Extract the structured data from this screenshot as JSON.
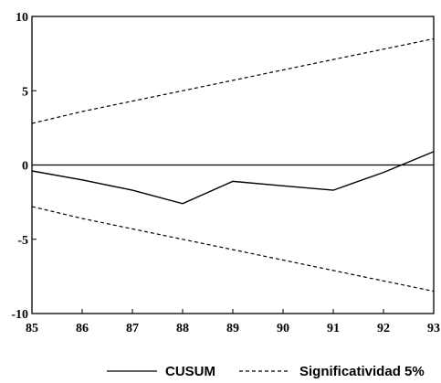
{
  "chart_data": {
    "type": "line",
    "x": [
      85,
      86,
      87,
      88,
      89,
      90,
      91,
      92,
      93
    ],
    "xlim": [
      85,
      93
    ],
    "ylim": [
      -10,
      10
    ],
    "x_tick_labels": [
      "85",
      "86",
      "87",
      "88",
      "89",
      "90",
      "91",
      "92",
      "93"
    ],
    "y_tick_labels": [
      {
        "value": 10,
        "label": "10"
      },
      {
        "value": 5,
        "label": "5"
      },
      {
        "value": 0,
        "label": "0"
      },
      {
        "value": -5,
        "label": "-5"
      },
      {
        "value": -10,
        "label": "-10"
      }
    ],
    "grid": false,
    "zero_line": true,
    "legend_position": "bottom-center",
    "series": [
      {
        "name": "CUSUM",
        "style": "solid",
        "color": "#000000",
        "values": [
          -0.4,
          -1.0,
          -1.7,
          -2.6,
          -1.1,
          -1.4,
          -1.7,
          -0.5,
          0.9
        ]
      },
      {
        "name": "Significatividad 5%",
        "style": "dashed",
        "color": "#000000",
        "values": [
          2.8,
          3.6,
          4.3,
          5.0,
          5.7,
          6.4,
          7.1,
          7.8,
          8.5
        ]
      },
      {
        "style": "dashed",
        "color": "#000000",
        "values": [
          -2.8,
          -3.6,
          -4.3,
          -5.0,
          -5.7,
          -6.4,
          -7.1,
          -7.8,
          -8.5
        ]
      }
    ]
  }
}
